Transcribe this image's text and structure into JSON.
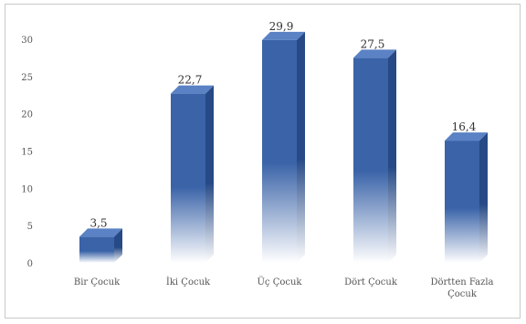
{
  "chart_data": {
    "type": "bar",
    "title": "",
    "xlabel": "",
    "ylabel": "",
    "categories": [
      "Bir Çocuk",
      "İki Çocuk",
      "Üç Çocuk",
      "Dört Çocuk",
      "Dörtten Fazla Çocuk"
    ],
    "category_lines": [
      [
        "Bir Çocuk"
      ],
      [
        "İki Çocuk"
      ],
      [
        "Üç Çocuk"
      ],
      [
        "Dört Çocuk"
      ],
      [
        "Dörtten Fazla",
        "Çocuk"
      ]
    ],
    "values": [
      3.5,
      22.7,
      29.9,
      27.5,
      16.4
    ],
    "data_labels": [
      "3,5",
      "22,7",
      "29,9",
      "27,5",
      "16,4"
    ],
    "ylim": [
      0,
      30
    ],
    "yticks": [
      0,
      5,
      10,
      15,
      20,
      25,
      30
    ],
    "grid": false,
    "legend": "none",
    "colors": {
      "bar_top": "#3a63a8",
      "bar_fade": "#ffffff",
      "bar_side": "#274a86",
      "bar_cap": "#5a82c4"
    }
  }
}
